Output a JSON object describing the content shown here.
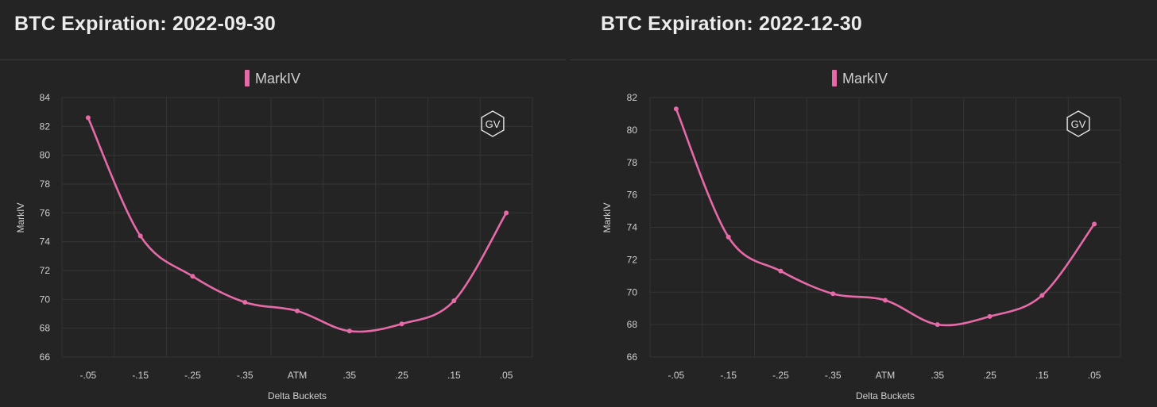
{
  "chart_data": [
    {
      "type": "line",
      "title": "BTC Expiration: 2022-09-30",
      "categories": [
        "-.05",
        "-.15",
        "-.25",
        "-.35",
        "ATM",
        ".35",
        ".25",
        ".15",
        ".05"
      ],
      "series": [
        {
          "name": "MarkIV",
          "values": [
            82.6,
            74.4,
            71.6,
            69.8,
            69.2,
            67.8,
            68.3,
            69.9,
            76.0
          ],
          "color": "#e66aa8"
        }
      ],
      "xlabel": "Delta Buckets",
      "ylabel": "MarkIV",
      "ylim": [
        66,
        84
      ],
      "yticks": [
        66,
        68,
        70,
        72,
        74,
        76,
        78,
        80,
        82,
        84
      ],
      "legend": "top-center",
      "grid": true,
      "badge": "GV"
    },
    {
      "type": "line",
      "title": "BTC Expiration: 2022-12-30",
      "categories": [
        "-.05",
        "-.15",
        "-.25",
        "-.35",
        "ATM",
        ".35",
        ".25",
        ".15",
        ".05"
      ],
      "series": [
        {
          "name": "MarkIV",
          "values": [
            81.3,
            73.4,
            71.3,
            69.9,
            69.5,
            68.0,
            68.5,
            69.8,
            74.2
          ],
          "color": "#e66aa8"
        }
      ],
      "xlabel": "Delta Buckets",
      "ylabel": "MarkIV",
      "ylim": [
        66,
        82
      ],
      "yticks": [
        66,
        68,
        70,
        72,
        74,
        76,
        78,
        80,
        82
      ],
      "legend": "top-center",
      "grid": true,
      "badge": "GV"
    }
  ]
}
